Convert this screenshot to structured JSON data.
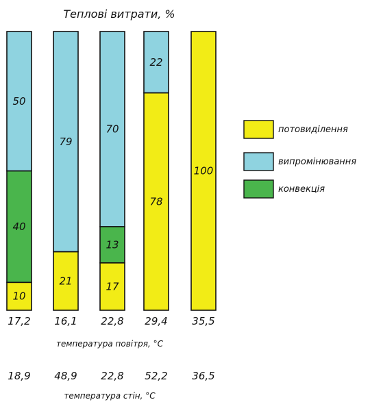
{
  "chart_data": {
    "type": "bar",
    "stacked": true,
    "title": "Теплові витрати, %",
    "ylim": [
      0,
      100
    ],
    "categories": [
      "17,2",
      "16,1",
      "22,8",
      "29,4",
      "35,5"
    ],
    "air_temperature": {
      "label": "температура повітря, °C",
      "values": [
        "17,2",
        "16,1",
        "22,8",
        "29,4",
        "35,5"
      ]
    },
    "wall_temperature": {
      "label": "температура стін, °C",
      "values": [
        "18,9",
        "48,9",
        "22,8",
        "52,2",
        "36,5"
      ]
    },
    "series": [
      {
        "name": "потовиділення",
        "color": "#f2ec16",
        "values": [
          10,
          21,
          17,
          78,
          100
        ]
      },
      {
        "name": "конвекція",
        "color": "#4ab54c",
        "values": [
          40,
          0,
          13,
          0,
          0
        ]
      },
      {
        "name": "випромінювання",
        "color": "#8fd3e0",
        "values": [
          50,
          79,
          70,
          22,
          0
        ]
      }
    ],
    "legend": {
      "placement": "right",
      "order": [
        "потовиділення",
        "випромінювання",
        "конвекція"
      ]
    },
    "grid": false
  }
}
